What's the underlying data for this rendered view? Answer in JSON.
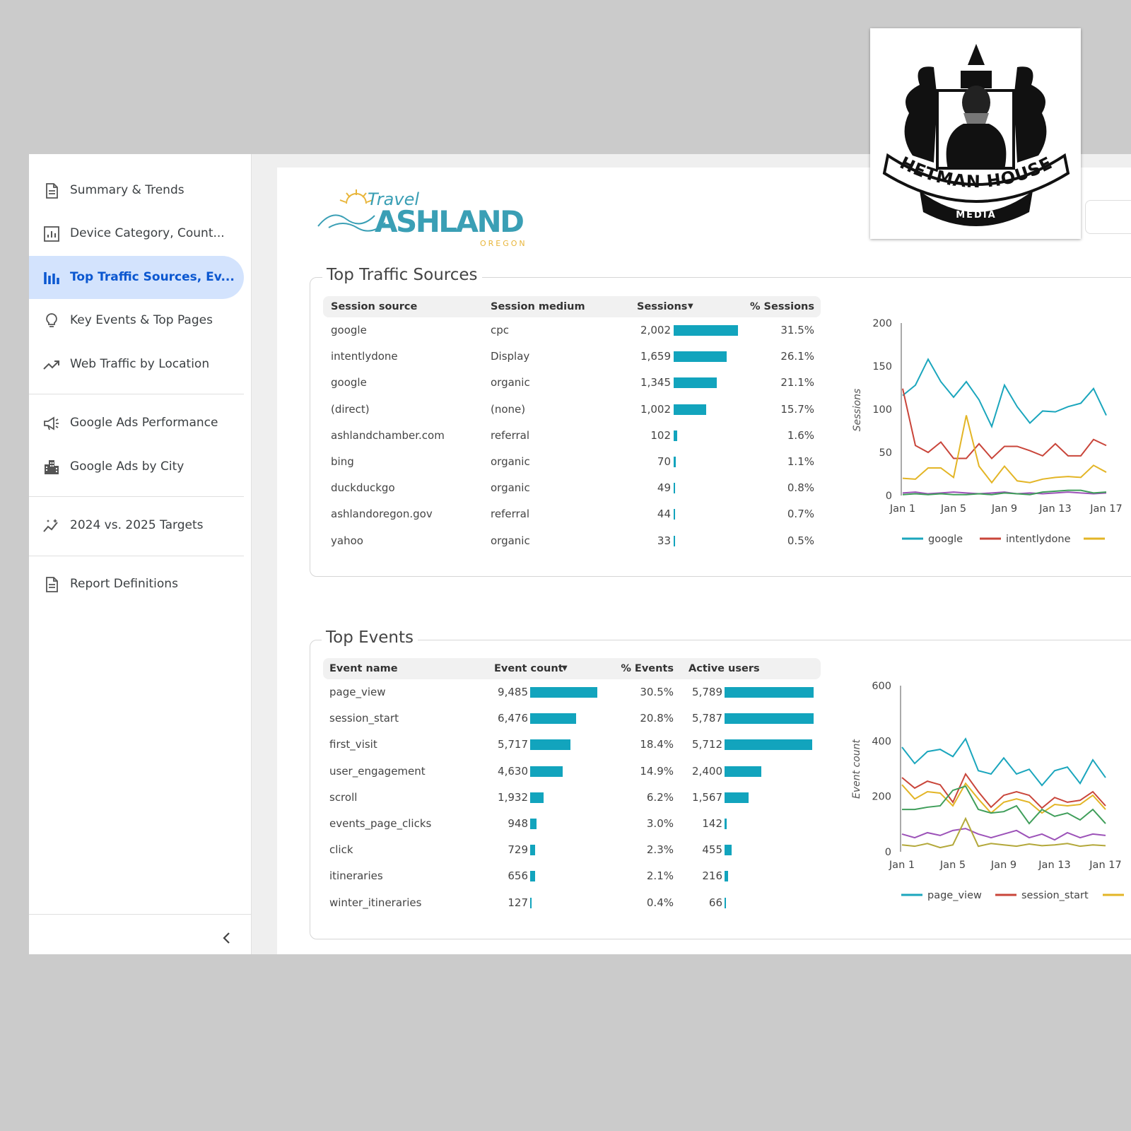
{
  "logo": {
    "hetman": "HETMAN HOUSE",
    "hetman_sub": "MEDIA",
    "travel": "Travel",
    "ashland": "ASHLAND",
    "oregon": "OREGON"
  },
  "nav": [
    "Summary & Trends",
    "Device Category, Count...",
    "Top Traffic Sources, Ev...",
    "Key Events & Top Pages",
    "Web Traffic by Location",
    "Google Ads Performance",
    "Google Ads by City",
    "2024 vs. 2025 Targets",
    "Report Definitions"
  ],
  "traffic_table": {
    "title": "Top Traffic Sources",
    "headers": [
      "Session source",
      "Session medium",
      "Sessions",
      "% Sessions"
    ],
    "sources": [
      "google",
      "intentlydone",
      "google",
      "(direct)",
      "ashlandchamber.com",
      "bing",
      "duckduckgo",
      "ashlandoregon.gov",
      "yahoo"
    ],
    "mediums": [
      "cpc",
      "Display",
      "organic",
      "(none)",
      "referral",
      "organic",
      "organic",
      "referral",
      "organic"
    ],
    "sessions": [
      2002,
      1659,
      1345,
      1002,
      102,
      70,
      49,
      44,
      33
    ],
    "sessions_labels": [
      "2,002",
      "1,659",
      "1,345",
      "1,002",
      "102",
      "70",
      "49",
      "44",
      "33"
    ],
    "pct_sessions": [
      "31.5%",
      "26.1%",
      "21.1%",
      "15.7%",
      "1.6%",
      "1.1%",
      "0.8%",
      "0.7%",
      "0.5%"
    ]
  },
  "events_table": {
    "title": "Top Events",
    "headers": [
      "Event name",
      "Event count",
      "% Events",
      "Active users"
    ],
    "names": [
      "page_view",
      "session_start",
      "first_visit",
      "user_engagement",
      "scroll",
      "events_page_clicks",
      "click",
      "itineraries",
      "winter_itineraries"
    ],
    "counts": [
      9485,
      6476,
      5717,
      4630,
      1932,
      948,
      729,
      656,
      127
    ],
    "counts_labels": [
      "9,485",
      "6,476",
      "5,717",
      "4,630",
      "1,932",
      "948",
      "729",
      "656",
      "127"
    ],
    "pct_events": [
      "30.5%",
      "20.8%",
      "18.4%",
      "14.9%",
      "6.2%",
      "3.0%",
      "2.3%",
      "2.1%",
      "0.4%"
    ],
    "users": [
      5789,
      5787,
      5712,
      2400,
      1567,
      142,
      455,
      216,
      66
    ],
    "users_labels": [
      "5,789",
      "5,787",
      "5,712",
      "2,400",
      "1,567",
      "142",
      "455",
      "216",
      "66"
    ]
  },
  "traffic_chart": {
    "type": "line",
    "y_label": "Sessions",
    "categories": [
      "Jan 1",
      null,
      null,
      null,
      "Jan 5",
      null,
      null,
      null,
      "Jan 9",
      null,
      null,
      null,
      "Jan 13",
      null,
      null,
      null,
      "Jan 17"
    ],
    "ylim": [
      0,
      200
    ],
    "yticks": [
      0,
      50,
      100,
      150,
      200
    ],
    "series": [
      {
        "name": "google",
        "color": "#1ba6bd",
        "values": [
          116,
          128,
          158,
          132,
          114,
          132,
          111,
          80,
          128,
          103,
          84,
          98,
          97,
          103,
          107,
          124,
          93
        ]
      },
      {
        "name": "intentlydone",
        "color": "#c9453a",
        "values": [
          124,
          58,
          50,
          62,
          43,
          43,
          60,
          43,
          57,
          57,
          52,
          46,
          60,
          46,
          46,
          65,
          58
        ]
      },
      {
        "color": "#e3b526",
        "values": [
          20,
          19,
          32,
          32,
          21,
          93,
          34,
          15,
          34,
          17,
          15,
          19,
          21,
          22,
          21,
          35,
          27
        ]
      },
      {
        "color": "#9c52b8",
        "values": [
          3,
          4,
          2,
          3,
          4,
          3,
          2,
          3,
          4,
          2,
          3,
          2,
          3,
          4,
          3,
          2,
          3
        ]
      },
      {
        "color": "#3f9e5a",
        "values": [
          1,
          2,
          1,
          2,
          1,
          1,
          2,
          1,
          3,
          2,
          1,
          4,
          5,
          6,
          6,
          3,
          4
        ]
      }
    ]
  },
  "events_chart": {
    "type": "line",
    "y_label": "Event count",
    "categories": [
      "Jan 1",
      null,
      null,
      null,
      "Jan 5",
      null,
      null,
      null,
      "Jan 9",
      null,
      null,
      null,
      "Jan 13",
      null,
      null,
      null,
      "Jan 17"
    ],
    "ylim": [
      0,
      600
    ],
    "yticks": [
      0,
      200,
      400,
      600
    ],
    "series": [
      {
        "name": "page_view",
        "color": "#1ba6bd",
        "values": [
          378,
          319,
          362,
          370,
          344,
          408,
          293,
          281,
          339,
          281,
          298,
          240,
          293,
          306,
          247,
          332,
          268
        ]
      },
      {
        "name": "session_start",
        "color": "#c9453a",
        "values": [
          268,
          230,
          255,
          242,
          179,
          281,
          217,
          161,
          204,
          217,
          204,
          158,
          196,
          179,
          186,
          217,
          166
        ]
      },
      {
        "color": "#e3b526",
        "values": [
          242,
          191,
          217,
          212,
          166,
          247,
          191,
          140,
          179,
          191,
          179,
          140,
          171,
          166,
          171,
          204,
          153
        ]
      },
      {
        "color": "#3f9e5a",
        "values": [
          153,
          153,
          161,
          166,
          222,
          237,
          153,
          140,
          145,
          166,
          102,
          153,
          128,
          140,
          115,
          153,
          102
        ]
      },
      {
        "color": "#9c52b8",
        "values": [
          64,
          51,
          69,
          59,
          77,
          84,
          64,
          51,
          64,
          77,
          51,
          64,
          43,
          69,
          51,
          64,
          59
        ]
      },
      {
        "color": "#b3a83a",
        "values": [
          25,
          20,
          30,
          15,
          25,
          120,
          20,
          30,
          25,
          20,
          28,
          22,
          25,
          30,
          20,
          25,
          22
        ]
      }
    ]
  }
}
